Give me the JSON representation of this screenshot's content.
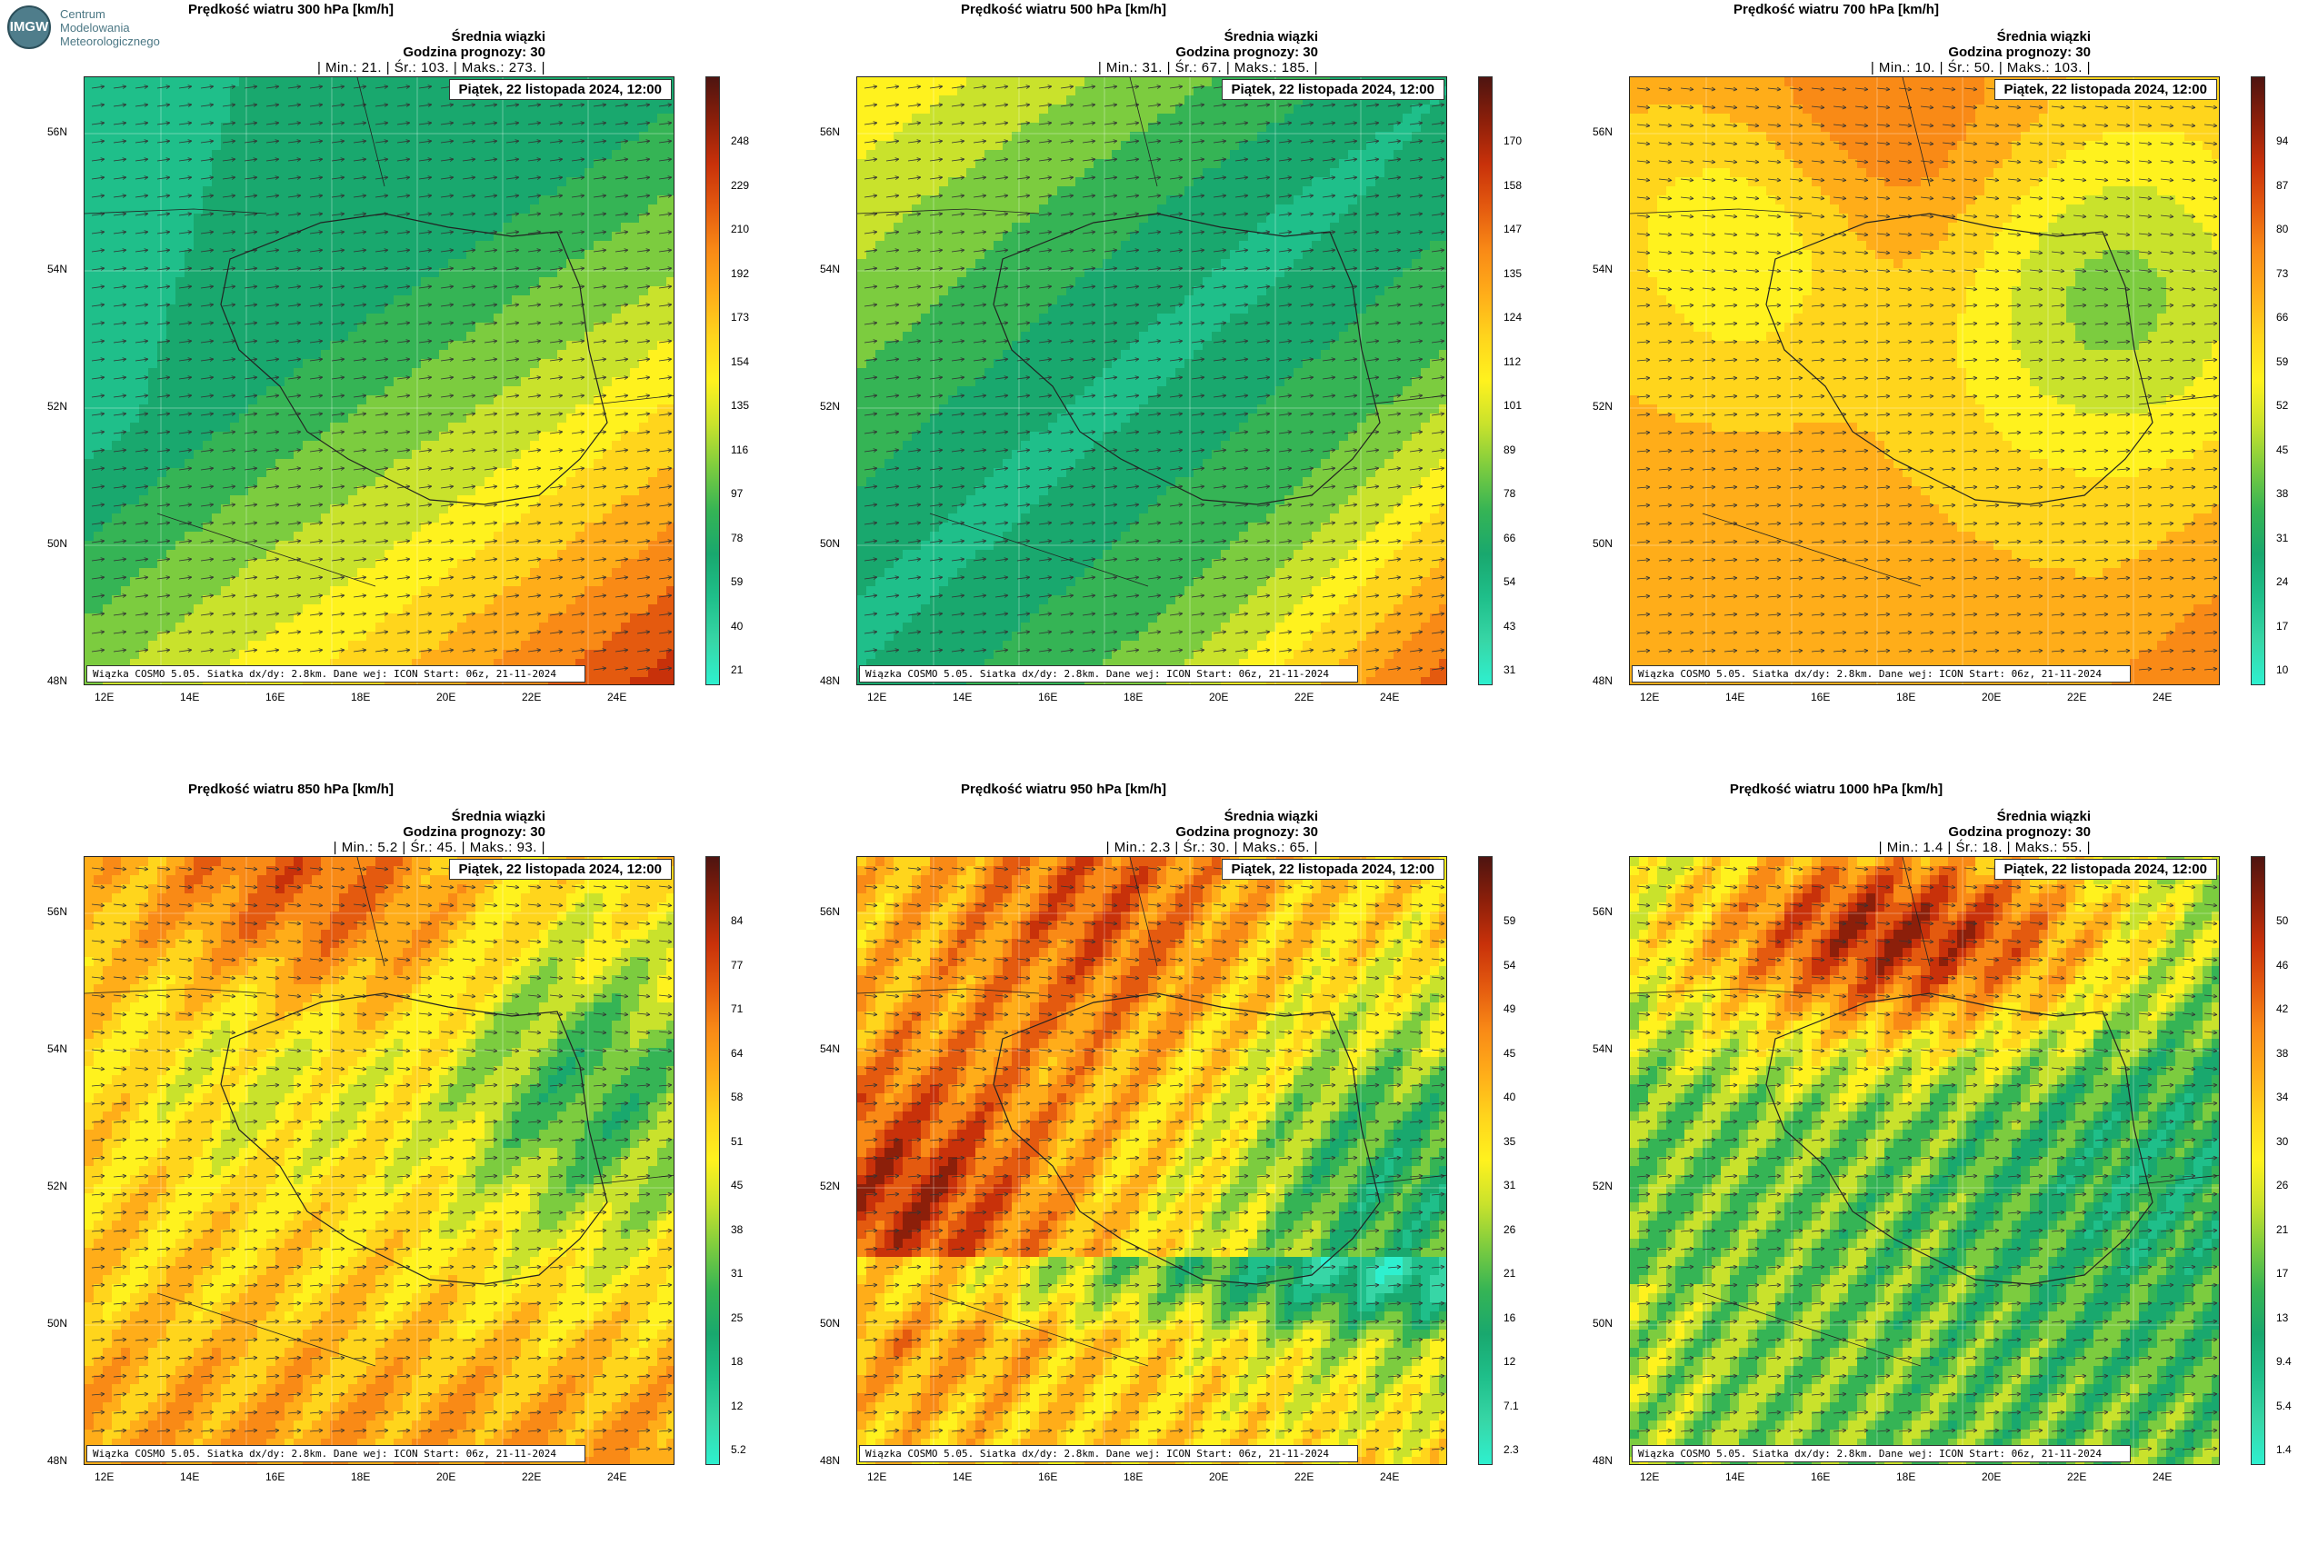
{
  "logo": {
    "initials": "IMGW",
    "line1": "Centrum",
    "line2": "Modelowania",
    "line3": "Meteorologicznego"
  },
  "common": {
    "subtitle": "Średnia wiązki",
    "hour": "Godzina prognozy: 30",
    "date": "Piątek, 22 listopada 2024, 12:00",
    "footer": "Wiązka COSMO 5.05. Siatka dx/dy: 2.8km. Dane wej: ICON Start: 06z, 21-11-2024",
    "lat_labels": [
      "56N",
      "54N",
      "52N",
      "50N",
      "48N"
    ],
    "lon_labels": [
      "12E",
      "14E",
      "16E",
      "18E",
      "20E",
      "22E",
      "24E"
    ]
  },
  "panels": [
    {
      "title": "Prędkość wiatru 300 hPa [km/h]",
      "stats": "| Min.:    21. | Śr.:     103. | Maks.:    273. |",
      "ticks": [
        "248",
        "229",
        "210",
        "192",
        "173",
        "154",
        "135",
        "116",
        "97",
        "78",
        "59",
        "40",
        "21"
      ],
      "pattern": "p300"
    },
    {
      "title": "Prędkość wiatru 500 hPa [km/h]",
      "stats": "| Min.:    31. | Śr.:     67. | Maks.:    185. |",
      "ticks": [
        "170",
        "158",
        "147",
        "135",
        "124",
        "112",
        "101",
        "89",
        "78",
        "66",
        "54",
        "43",
        "31"
      ],
      "pattern": "p500"
    },
    {
      "title": "Prędkość wiatru 700 hPa [km/h]",
      "stats": "| Min.:    10. | Śr.:     50. | Maks.:    103. |",
      "ticks": [
        "94",
        "87",
        "80",
        "73",
        "66",
        "59",
        "52",
        "45",
        "38",
        "31",
        "24",
        "17",
        "10"
      ],
      "pattern": "p700"
    },
    {
      "title": "Prędkość wiatru 850 hPa [km/h]",
      "stats": "| Min.:    5.2 | Śr.:     45. | Maks.:     93. |",
      "ticks": [
        "84",
        "77",
        "71",
        "64",
        "58",
        "51",
        "45",
        "38",
        "31",
        "25",
        "18",
        "12",
        "5.2"
      ],
      "pattern": "p850"
    },
    {
      "title": "Prędkość wiatru 950 hPa [km/h]",
      "stats": "| Min.:    2.3 | Śr.:     30. | Maks.:     65. |",
      "ticks": [
        "59",
        "54",
        "49",
        "45",
        "40",
        "35",
        "31",
        "26",
        "21",
        "16",
        "12",
        "7.1",
        "2.3"
      ],
      "pattern": "p950"
    },
    {
      "title": "Prędkość wiatru 1000 hPa [km/h]",
      "stats": "| Min.:    1.4 | Śr.:     18. | Maks.:     55. |",
      "ticks": [
        "50",
        "46",
        "42",
        "38",
        "34",
        "30",
        "26",
        "21",
        "17",
        "13",
        "9.4",
        "5.4",
        "1.4"
      ],
      "pattern": "p1000"
    }
  ]
}
